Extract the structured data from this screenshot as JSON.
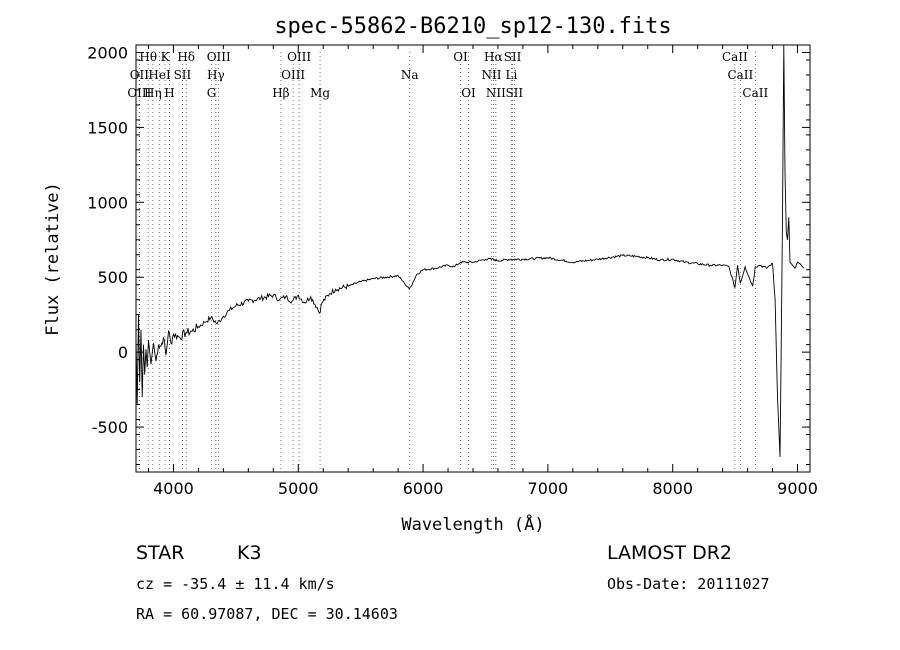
{
  "chart_data": {
    "type": "line",
    "title": "spec-55862-B6210_sp12-130.fits",
    "xlabel": "Wavelength (Å)",
    "ylabel": "Flux (relative)",
    "xlim": [
      3700,
      9100
    ],
    "ylim": [
      -800,
      2050
    ],
    "x_ticks": [
      4000,
      5000,
      6000,
      7000,
      8000,
      9000
    ],
    "y_ticks": [
      -500,
      0,
      500,
      1000,
      1500,
      2000
    ],
    "grid": false,
    "series": [
      {
        "x": [
          3700,
          3710,
          3720,
          3730,
          3740,
          3750,
          3760,
          3770,
          3780,
          3790,
          3800,
          3820,
          3840,
          3860,
          3880,
          3900,
          3920,
          3940,
          3960,
          3980,
          4000,
          4050,
          4100,
          4150,
          4200,
          4250,
          4300,
          4350,
          4400,
          4450,
          4500,
          4600,
          4700,
          4800,
          4850,
          4900,
          4950,
          5000,
          5050,
          5100,
          5150,
          5170,
          5190,
          5250,
          5300,
          5400,
          5500,
          5600,
          5700,
          5800,
          5850,
          5890,
          5950,
          6000,
          6100,
          6200,
          6250,
          6300,
          6400,
          6500,
          6563,
          6600,
          6700,
          6800,
          6900,
          7000,
          7200,
          7400,
          7600,
          7700,
          7800,
          7900,
          8000,
          8100,
          8200,
          8300,
          8400,
          8450,
          8498,
          8520,
          8542,
          8580,
          8640,
          8662,
          8700,
          8750,
          8780,
          8800,
          8820,
          8840,
          8860,
          8880,
          8890,
          8900,
          8910,
          8920,
          8930,
          8940,
          8960,
          8980,
          9000,
          9020,
          9050
        ],
        "y": [
          100,
          -350,
          250,
          -200,
          150,
          -300,
          50,
          -150,
          20,
          -100,
          80,
          -80,
          60,
          -60,
          50,
          40,
          100,
          -20,
          140,
          60,
          120,
          100,
          130,
          140,
          170,
          200,
          230,
          190,
          240,
          280,
          310,
          340,
          360,
          380,
          350,
          370,
          340,
          380,
          330,
          370,
          300,
          260,
          330,
          390,
          420,
          440,
          470,
          490,
          500,
          510,
          460,
          420,
          520,
          550,
          560,
          580,
          570,
          600,
          600,
          620,
          620,
          610,
          620,
          620,
          625,
          630,
          600,
          620,
          645,
          640,
          630,
          615,
          620,
          600,
          590,
          580,
          580,
          570,
          430,
          580,
          460,
          570,
          440,
          570,
          580,
          560,
          580,
          590,
          350,
          -300,
          -700,
          900,
          2050,
          1200,
          800,
          750,
          900,
          600,
          580,
          560,
          600,
          590,
          560
        ]
      }
    ],
    "lines": [
      {
        "label": "Hθ",
        "x": 3798,
        "row": 0
      },
      {
        "label": "K",
        "x": 3933,
        "row": 0
      },
      {
        "label": "Hδ",
        "x": 4102,
        "row": 0
      },
      {
        "label": "OIII",
        "x": 4363,
        "row": 0
      },
      {
        "label": "OIII",
        "x": 5007,
        "row": 0
      },
      {
        "label": "OI",
        "x": 6300,
        "row": 0
      },
      {
        "label": "Hα",
        "x": 6563,
        "row": 0
      },
      {
        "label": "SII",
        "x": 6717,
        "row": 0
      },
      {
        "label": "CaII",
        "x": 8498,
        "row": 0
      },
      {
        "label": "OII",
        "x": 3727,
        "row": 1
      },
      {
        "label": "HeI",
        "x": 3889,
        "row": 1
      },
      {
        "label": "SII",
        "x": 4072,
        "row": 1
      },
      {
        "label": "Hγ",
        "x": 4340,
        "row": 1
      },
      {
        "label": "OIII",
        "x": 4959,
        "row": 1
      },
      {
        "label": "Na",
        "x": 5893,
        "row": 1
      },
      {
        "label": "NII",
        "x": 6548,
        "row": 1
      },
      {
        "label": "Li",
        "x": 6708,
        "row": 1
      },
      {
        "label": "CaII",
        "x": 8542,
        "row": 1
      },
      {
        "label": "OIII",
        "x": 3727,
        "row": 2
      },
      {
        "label": "Hη",
        "x": 3835,
        "row": 2
      },
      {
        "label": "H",
        "x": 3968,
        "row": 2
      },
      {
        "label": "G",
        "x": 4305,
        "row": 2
      },
      {
        "label": "Hβ",
        "x": 4861,
        "row": 2
      },
      {
        "label": "Mg",
        "x": 5175,
        "row": 2
      },
      {
        "label": "OI",
        "x": 6364,
        "row": 2
      },
      {
        "label": "NII",
        "x": 6583,
        "row": 2
      },
      {
        "label": "SII",
        "x": 6731,
        "row": 2
      },
      {
        "label": "CaII",
        "x": 8662,
        "row": 2
      }
    ]
  },
  "info": {
    "object_class": "STAR",
    "subclass": "K3",
    "survey": "LAMOST DR2",
    "redshift": "cz = -35.4 ± 11.4 km/s",
    "obs_date": "Obs-Date: 20111027",
    "coords": "RA =  60.97087, DEC =  30.14603"
  }
}
